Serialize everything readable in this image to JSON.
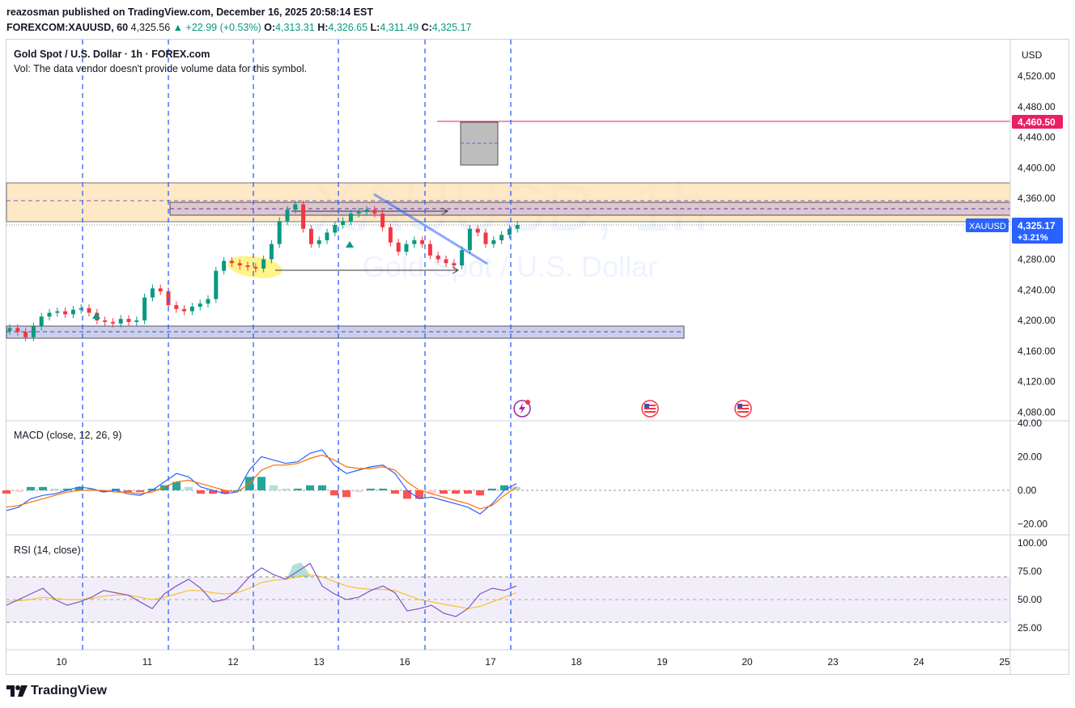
{
  "header": {
    "publisher_line": "reazosman published on TradingView.com, December 16, 2025 20:58:14 EST",
    "symbol": "FOREXCOM:XAUUSD, 60",
    "last": "4,325.56",
    "change": "+22.99 (+0.53%)",
    "o_label": "O:",
    "o": "4,313.31",
    "h_label": "H:",
    "h": "4,326.65",
    "l_label": "L:",
    "l": "4,311.49",
    "c_label": "C:",
    "c": "4,325.17"
  },
  "legend": {
    "title": "Gold Spot / U.S. Dollar · 1h · FOREX.com",
    "volume_note": "Vol: The data vendor doesn't provide volume data for this symbol."
  },
  "watermark": {
    "line1": "XAUUSD, 1h",
    "line2": "Gold Spot / U.S. Dollar"
  },
  "price_scale": {
    "currency": "USD",
    "ticks": [
      "4,520.00",
      "4,480.00",
      "4,440.00",
      "4,400.00",
      "4,360.00",
      "4,320.00",
      "4,280.00",
      "4,240.00",
      "4,200.00",
      "4,160.00",
      "4,120.00",
      "4,080.00"
    ],
    "tick_values": [
      4520,
      4480,
      4440,
      4400,
      4360,
      4320,
      4280,
      4240,
      4200,
      4160,
      4120,
      4080
    ],
    "target_label": "4,460.50",
    "symbol_label": "XAUUSD",
    "symbol_price": "4,325.17",
    "symbol_change": "+3.21%"
  },
  "macd": {
    "label": "MACD (close, 12, 26, 9)",
    "ticks": [
      "40.00",
      "20.00",
      "0.00",
      "−20.00"
    ],
    "tick_values": [
      40,
      20,
      0,
      -20
    ]
  },
  "rsi": {
    "label": "RSI (14, close)",
    "ticks": [
      "100.00",
      "75.00",
      "50.00",
      "25.00"
    ],
    "tick_values": [
      100,
      75,
      50,
      25
    ]
  },
  "time_axis": {
    "labels": [
      "10",
      "11",
      "12",
      "13",
      "16",
      "17",
      "18",
      "19",
      "20",
      "23",
      "24",
      "25"
    ]
  },
  "colors": {
    "up": "#089981",
    "down": "#f23645",
    "accent": "#2962ff",
    "target_line": "#e91e63",
    "resistance_zone": "#ffe0b2",
    "support_zone": "#c5cae9",
    "macd_line": "#2962ff",
    "signal_line": "#ff6d00",
    "rsi_line": "#7e57c2",
    "rsi_ma": "#fbc02d"
  },
  "chart_data": {
    "type": "line",
    "title": "Gold Spot / U.S. Dollar · 1h · FOREX.com",
    "xlabel": "",
    "ylabel": "",
    "ylim": [
      4060,
      4545
    ],
    "x_labels": [
      "10",
      "11",
      "12",
      "13",
      "16",
      "17"
    ],
    "series": [
      {
        "name": "XAUUSD",
        "values": [
          4190,
          4185,
          4178,
          4192,
          4205,
          4210,
          4212,
          4208,
          4214,
          4216,
          4210,
          4200,
          4198,
          4196,
          4202,
          4198,
          4200,
          4230,
          4242,
          4238,
          4220,
          4215,
          4212,
          4218,
          4222,
          4228,
          4265,
          4278,
          4275,
          4272,
          4270,
          4268,
          4280,
          4300,
          4330,
          4345,
          4352,
          4320,
          4300,
          4305,
          4315,
          4325,
          4330,
          4340,
          4342,
          4345,
          4340,
          4322,
          4302,
          4290,
          4300,
          4305,
          4300,
          4285,
          4280,
          4275,
          4272,
          4292,
          4320,
          4315,
          4300,
          4305,
          4312,
          4320,
          4325
        ]
      }
    ],
    "levels": [
      {
        "label": "4,460.50",
        "value": 4460.5
      },
      {
        "name": "resistance zone",
        "from": 4322,
        "to": 4380
      },
      {
        "name": "support zone",
        "from": 4178,
        "to": 4194
      }
    ],
    "macd": {
      "macd_line": [
        -12,
        -10,
        -5,
        -3,
        -2,
        0,
        2,
        1,
        -1,
        0,
        -2,
        -3,
        0,
        5,
        10,
        8,
        2,
        0,
        -2,
        -1,
        12,
        20,
        18,
        16,
        17,
        22,
        24,
        15,
        10,
        12,
        14,
        15,
        10,
        0,
        -5,
        -4,
        -6,
        -8,
        -10,
        -14,
        -8,
        0,
        4
      ],
      "signal_line": [
        -10,
        -9,
        -7,
        -5,
        -3,
        -1,
        0,
        0,
        0,
        -1,
        -1,
        -2,
        -1,
        2,
        5,
        6,
        4,
        2,
        0,
        -1,
        4,
        12,
        15,
        15,
        16,
        19,
        21,
        18,
        14,
        13,
        13,
        14,
        12,
        5,
        0,
        -2,
        -4,
        -6,
        -8,
        -11,
        -9,
        -3,
        2
      ]
    },
    "rsi": {
      "rsi_line": [
        45,
        50,
        55,
        60,
        50,
        45,
        48,
        52,
        58,
        56,
        54,
        48,
        42,
        55,
        62,
        68,
        60,
        48,
        50,
        58,
        70,
        78,
        72,
        68,
        75,
        82,
        62,
        55,
        50,
        52,
        58,
        62,
        56,
        40,
        42,
        45,
        38,
        35,
        42,
        55,
        60,
        58,
        62
      ],
      "rsi_ma": [
        48,
        49,
        50,
        52,
        51,
        50,
        50,
        51,
        53,
        54,
        54,
        52,
        50,
        52,
        55,
        58,
        58,
        56,
        55,
        56,
        60,
        65,
        67,
        68,
        70,
        72,
        70,
        66,
        62,
        60,
        59,
        59,
        58,
        54,
        50,
        48,
        46,
        44,
        42,
        44,
        48,
        52,
        56
      ]
    }
  }
}
